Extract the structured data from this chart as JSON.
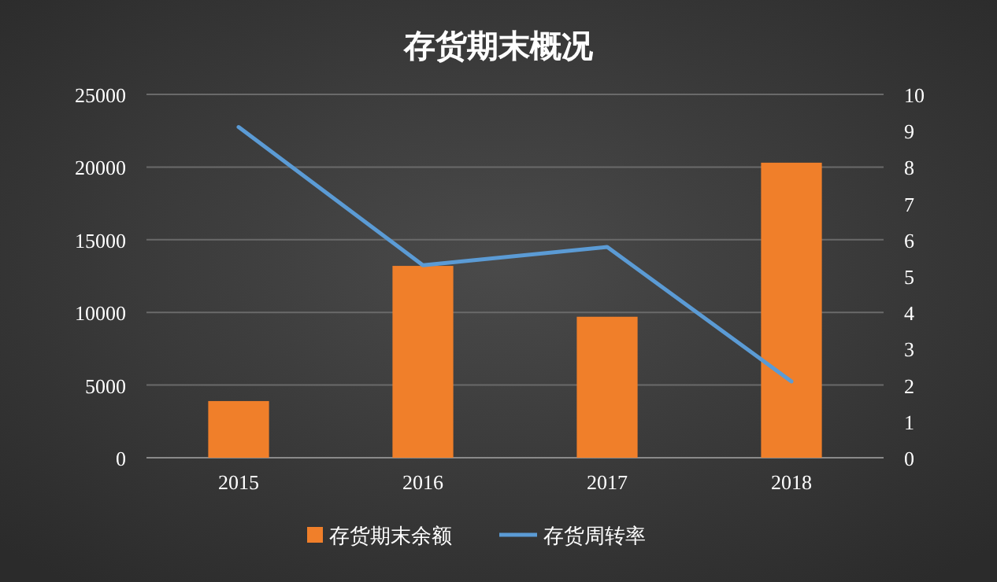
{
  "chart_data": {
    "type": "bar",
    "title": "存货期末概况",
    "categories": [
      "2015",
      "2016",
      "2017",
      "2018"
    ],
    "series": [
      {
        "name": "存货期末余额",
        "color": "#f07f2a",
        "values": [
          3900,
          13200,
          9700,
          20300
        ]
      },
      {
        "name": "存货周转率",
        "type": "line",
        "axis": "y2",
        "color": "#5b9bd5",
        "values": [
          9.1,
          5.3,
          5.8,
          2.1
        ]
      }
    ],
    "ylim": [
      0,
      25000
    ],
    "yticks": [
      0,
      5000,
      10000,
      15000,
      20000,
      25000
    ],
    "y2lim": [
      0,
      10
    ],
    "y2ticks": [
      0,
      1,
      2,
      3,
      4,
      5,
      6,
      7,
      8,
      9,
      10
    ],
    "grid": "y",
    "legend": "bottom"
  }
}
